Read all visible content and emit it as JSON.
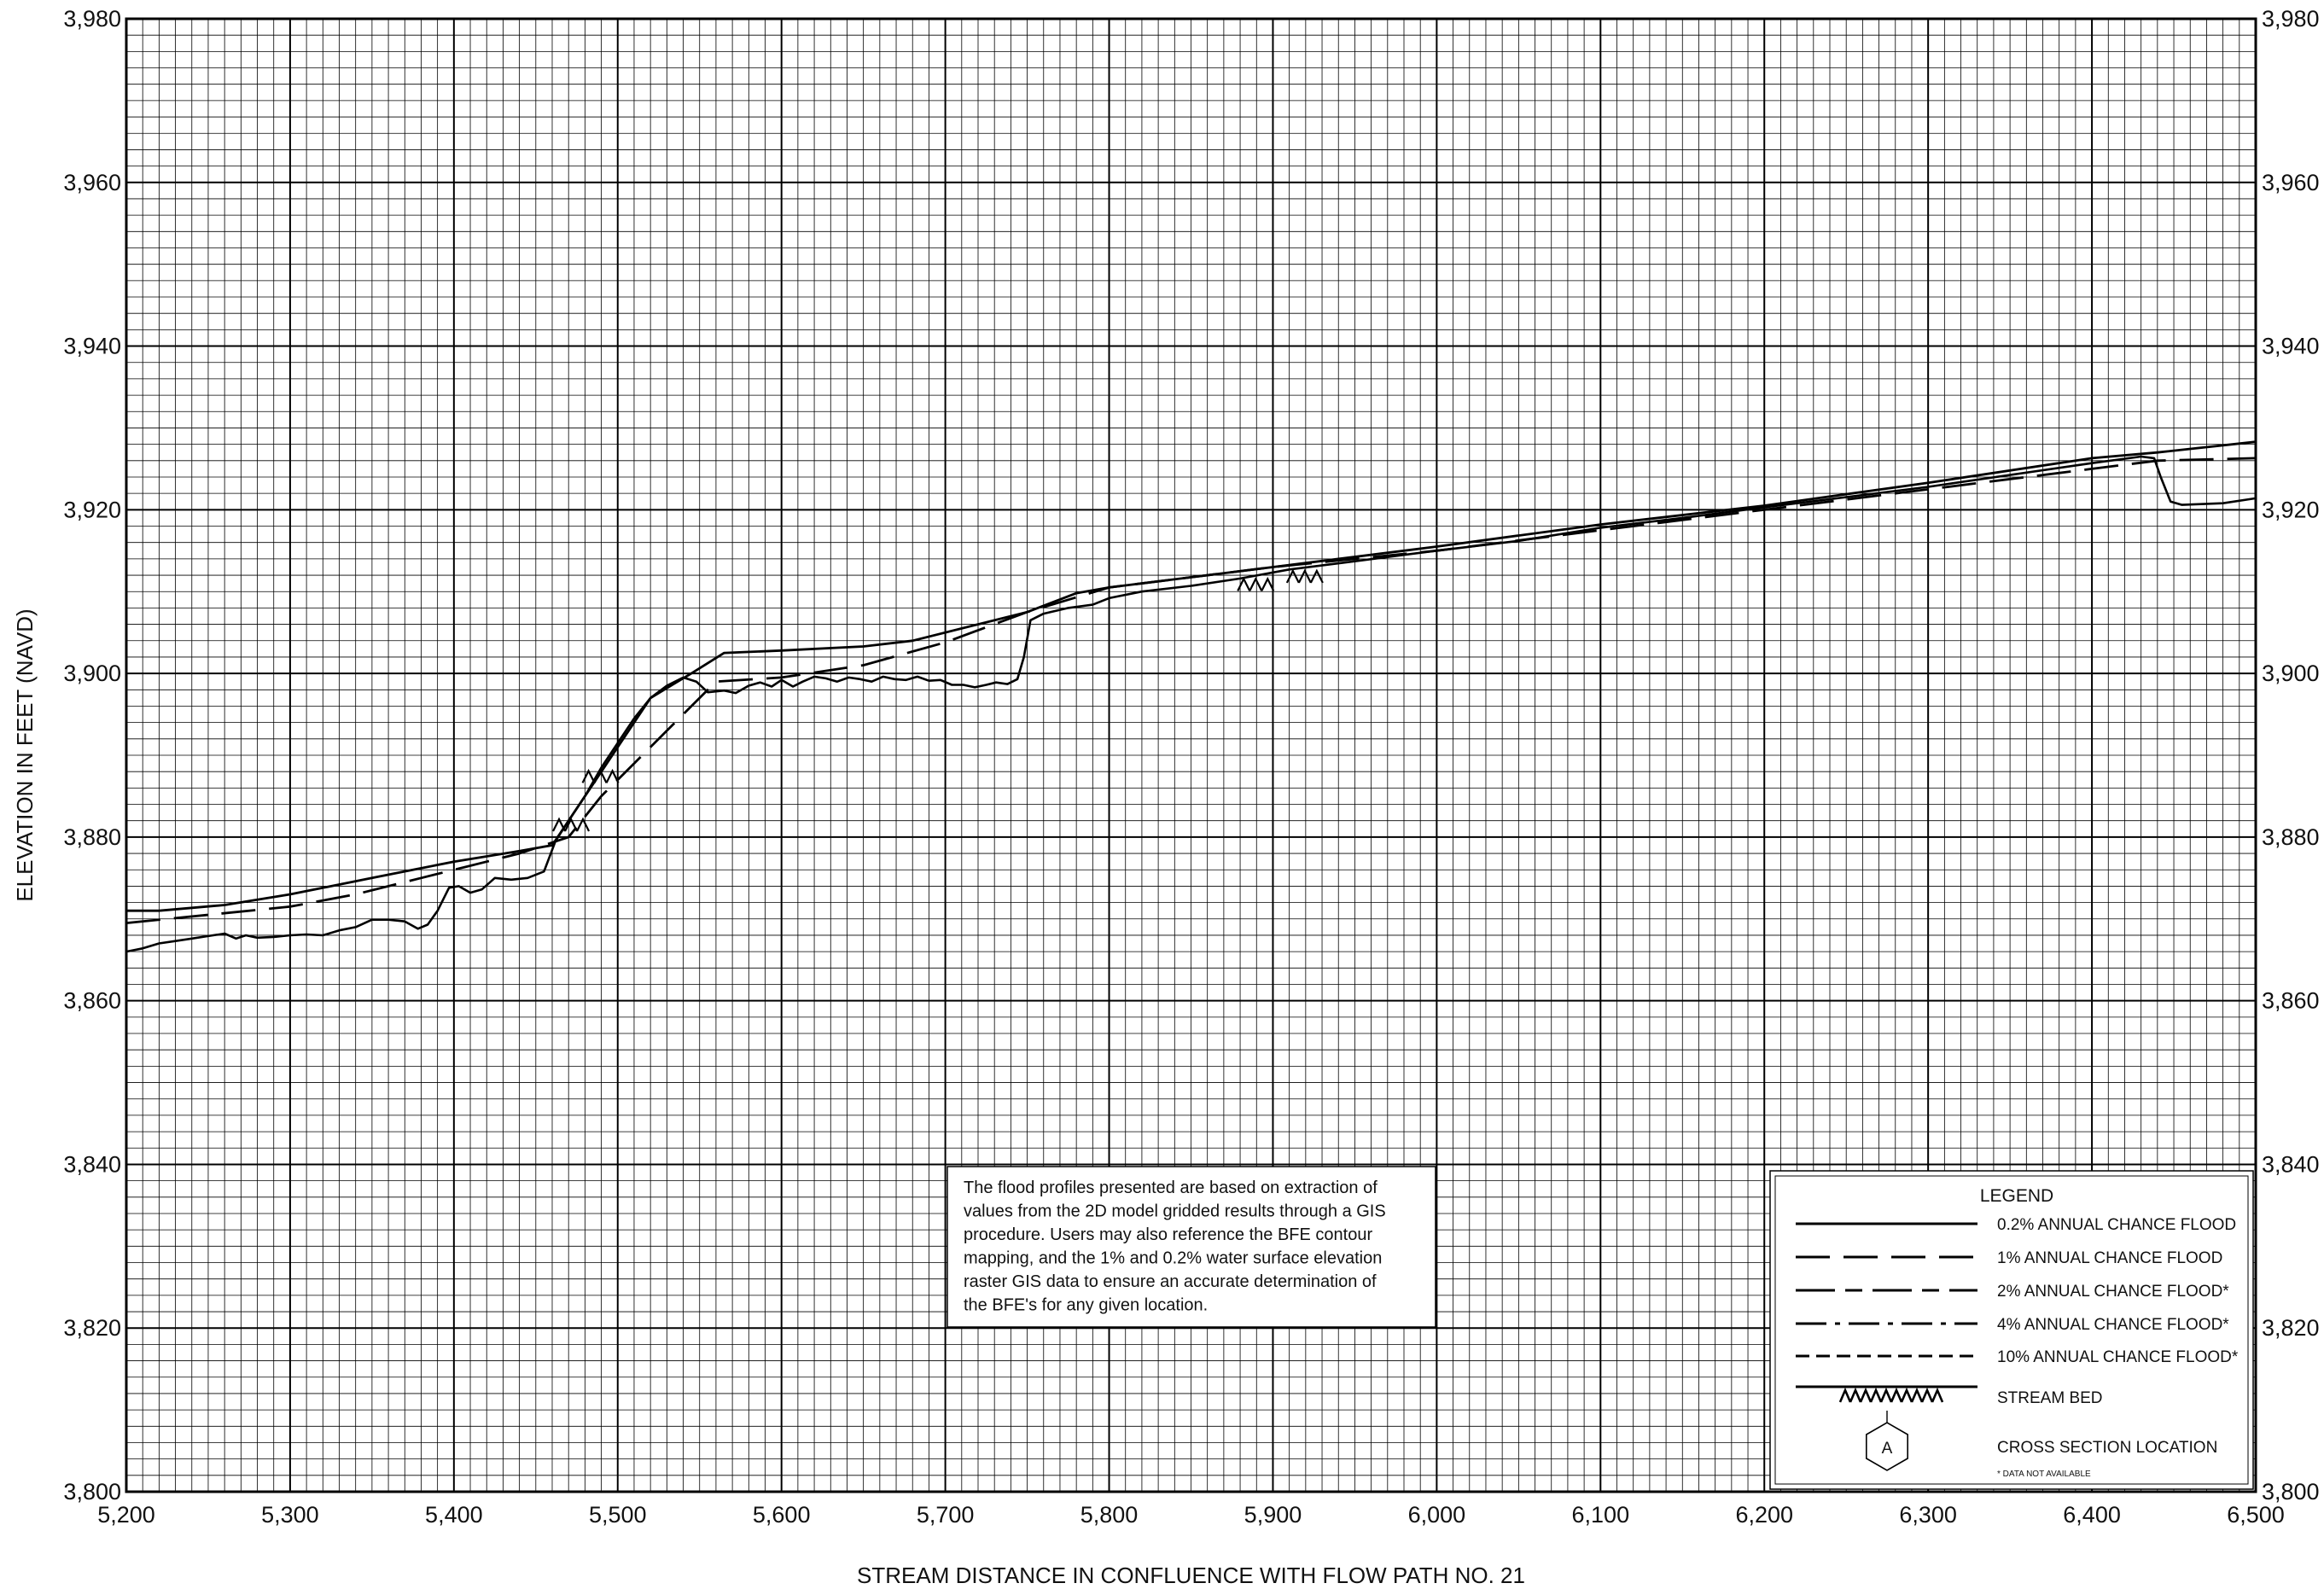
{
  "chart_data": {
    "type": "line",
    "title": "",
    "xlabel": "STREAM DISTANCE IN CONFLUENCE WITH FLOW PATH NO. 21",
    "ylabel": "ELEVATION IN FEET (NAVD)",
    "xlim": [
      5200,
      6500
    ],
    "ylim": [
      3800,
      3980
    ],
    "grid": true,
    "x_ticks": [
      "5,200",
      "5,300",
      "5,400",
      "5,500",
      "5,600",
      "5,700",
      "5,800",
      "5,900",
      "6,000",
      "6,100",
      "6,200",
      "6,300",
      "6,400",
      "6,500"
    ],
    "y_ticks": [
      "3,800",
      "3,820",
      "3,840",
      "3,860",
      "3,880",
      "3,900",
      "3,920",
      "3,940",
      "3,960",
      "3,980"
    ],
    "y_ticks_right": [
      "3,800",
      "3,820",
      "3,840",
      "3,860",
      "3,880",
      "3,900",
      "3,920",
      "3,940",
      "3,960",
      "3,980"
    ],
    "series": [
      {
        "name": "0.2% ANNUAL CHANCE FLOOD",
        "style": "solid",
        "points": [
          [
            5200,
            3871
          ],
          [
            5220,
            3871
          ],
          [
            5260,
            3871.7
          ],
          [
            5300,
            3873
          ],
          [
            5350,
            3875
          ],
          [
            5400,
            3877
          ],
          [
            5440,
            3878.3
          ],
          [
            5460,
            3879
          ],
          [
            5490,
            3888
          ],
          [
            5520,
            3897
          ],
          [
            5535,
            3898.8
          ],
          [
            5545,
            3900
          ],
          [
            5565,
            3902.5
          ],
          [
            5600,
            3902.8
          ],
          [
            5650,
            3903.3
          ],
          [
            5680,
            3904
          ],
          [
            5720,
            3906
          ],
          [
            5750,
            3907.5
          ],
          [
            5780,
            3909.8
          ],
          [
            5800,
            3910.5
          ],
          [
            5900,
            3913
          ],
          [
            6000,
            3915.5
          ],
          [
            6100,
            3918.2
          ],
          [
            6200,
            3920.5
          ],
          [
            6300,
            3923.3
          ],
          [
            6400,
            3926.3
          ],
          [
            6440,
            3927
          ],
          [
            6500,
            3928.3
          ]
        ]
      },
      {
        "name": "1% ANNUAL CHANCE FLOOD",
        "style": "longdash",
        "points": [
          [
            5200,
            3869.5
          ],
          [
            5250,
            3870.5
          ],
          [
            5300,
            3871.5
          ],
          [
            5340,
            3873
          ],
          [
            5380,
            3875
          ],
          [
            5420,
            3877
          ],
          [
            5440,
            3878
          ],
          [
            5470,
            3880
          ],
          [
            5490,
            3885
          ],
          [
            5510,
            3889
          ],
          [
            5530,
            3893
          ],
          [
            5550,
            3897
          ],
          [
            5560,
            3899
          ],
          [
            5600,
            3899.5
          ],
          [
            5650,
            3901
          ],
          [
            5700,
            3903.8
          ],
          [
            5750,
            3907.5
          ],
          [
            5800,
            3910.5
          ],
          [
            5900,
            3913
          ],
          [
            6000,
            3915
          ],
          [
            6100,
            3917.5
          ],
          [
            6200,
            3920
          ],
          [
            6300,
            3922.5
          ],
          [
            6400,
            3925
          ],
          [
            6440,
            3926
          ],
          [
            6500,
            3926.3
          ]
        ]
      },
      {
        "name": "STREAM BED",
        "style": "thalweg",
        "points": [
          [
            5200,
            3866
          ],
          [
            5210,
            3866.4
          ],
          [
            5220,
            3867
          ],
          [
            5230,
            3867.3
          ],
          [
            5240,
            3867.6
          ],
          [
            5250,
            3867.9
          ],
          [
            5260,
            3868.2
          ],
          [
            5267,
            3867.6
          ],
          [
            5273,
            3868
          ],
          [
            5280,
            3867.7
          ],
          [
            5290,
            3867.8
          ],
          [
            5300,
            3868
          ],
          [
            5310,
            3868.1
          ],
          [
            5320,
            3868
          ],
          [
            5330,
            3868.6
          ],
          [
            5340,
            3869
          ],
          [
            5350,
            3869.9
          ],
          [
            5360,
            3869.9
          ],
          [
            5370,
            3869.7
          ],
          [
            5378,
            3868.8
          ],
          [
            5384,
            3869.3
          ],
          [
            5390,
            3871
          ],
          [
            5397,
            3873.8
          ],
          [
            5403,
            3874
          ],
          [
            5410,
            3873.2
          ],
          [
            5417,
            3873.6
          ],
          [
            5425,
            3875
          ],
          [
            5435,
            3874.8
          ],
          [
            5445,
            3875
          ],
          [
            5455,
            3875.8
          ],
          [
            5462,
            3879.5
          ],
          [
            5470,
            3882
          ],
          [
            5480,
            3885
          ],
          [
            5490,
            3888.5
          ],
          [
            5500,
            3891.5
          ],
          [
            5510,
            3894.5
          ],
          [
            5520,
            3897
          ],
          [
            5530,
            3898.5
          ],
          [
            5540,
            3899.5
          ],
          [
            5548,
            3899
          ],
          [
            5555,
            3897.7
          ],
          [
            5565,
            3897.9
          ],
          [
            5572,
            3897.6
          ],
          [
            5580,
            3898.5
          ],
          [
            5587,
            3898.9
          ],
          [
            5594,
            3898.4
          ],
          [
            5600,
            3899.2
          ],
          [
            5607,
            3898.4
          ],
          [
            5613,
            3899
          ],
          [
            5620,
            3899.6
          ],
          [
            5627,
            3899.4
          ],
          [
            5634,
            3899
          ],
          [
            5641,
            3899.5
          ],
          [
            5648,
            3899.3
          ],
          [
            5655,
            3899
          ],
          [
            5662,
            3899.6
          ],
          [
            5669,
            3899.3
          ],
          [
            5676,
            3899.2
          ],
          [
            5683,
            3899.6
          ],
          [
            5690,
            3899.1
          ],
          [
            5697,
            3899.2
          ],
          [
            5704,
            3898.6
          ],
          [
            5711,
            3898.6
          ],
          [
            5718,
            3898.3
          ],
          [
            5725,
            3898.6
          ],
          [
            5731,
            3898.9
          ],
          [
            5738,
            3898.7
          ],
          [
            5744,
            3899.3
          ],
          [
            5748,
            3902
          ],
          [
            5752,
            3906.5
          ],
          [
            5760,
            3907.3
          ],
          [
            5775,
            3908
          ],
          [
            5790,
            3908.4
          ],
          [
            5800,
            3909.2
          ],
          [
            5820,
            3910
          ],
          [
            5850,
            3910.7
          ],
          [
            5880,
            3911.6
          ],
          [
            5910,
            3912.7
          ],
          [
            5950,
            3913.7
          ],
          [
            6000,
            3915
          ],
          [
            6050,
            3916.2
          ],
          [
            6100,
            3917.8
          ],
          [
            6150,
            3919
          ],
          [
            6200,
            3920.3
          ],
          [
            6300,
            3922.8
          ],
          [
            6400,
            3925.7
          ],
          [
            6430,
            3926.5
          ],
          [
            6438,
            3926.3
          ],
          [
            6442,
            3924
          ],
          [
            6448,
            3921
          ],
          [
            6455,
            3920.6
          ],
          [
            6480,
            3920.8
          ],
          [
            6500,
            3921.4
          ]
        ]
      }
    ],
    "stream_bed_marks": [
      5472,
      5490,
      5890,
      5920
    ],
    "annotation": {
      "lines": [
        "The flood profiles presented are based on extraction of",
        "values from the 2D model gridded results through a GIS",
        "procedure.  Users may also reference the BFE contour",
        "mapping, and the 1% and 0.2% water surface elevation",
        "raster GIS data to ensure an accurate determination of",
        "the BFE's for any given location."
      ]
    },
    "legend": {
      "title": "LEGEND",
      "placement": "bottom-right",
      "entries": [
        {
          "label": "0.2% ANNUAL CHANCE FLOOD",
          "style": "solid"
        },
        {
          "label": "1% ANNUAL CHANCE FLOOD",
          "style": "longdash"
        },
        {
          "label": "2% ANNUAL CHANCE FLOOD*",
          "style": "longshortdash"
        },
        {
          "label": "4% ANNUAL CHANCE FLOOD*",
          "style": "dashdot"
        },
        {
          "label": "10% ANNUAL CHANCE FLOOD*",
          "style": "shortdash"
        },
        {
          "label": "STREAM BED",
          "style": "thalweg"
        },
        {
          "label": "CROSS SECTION LOCATION",
          "style": "hexagon",
          "symbol_text": "A"
        }
      ],
      "footnote": "* DATA NOT AVAILABLE"
    }
  }
}
